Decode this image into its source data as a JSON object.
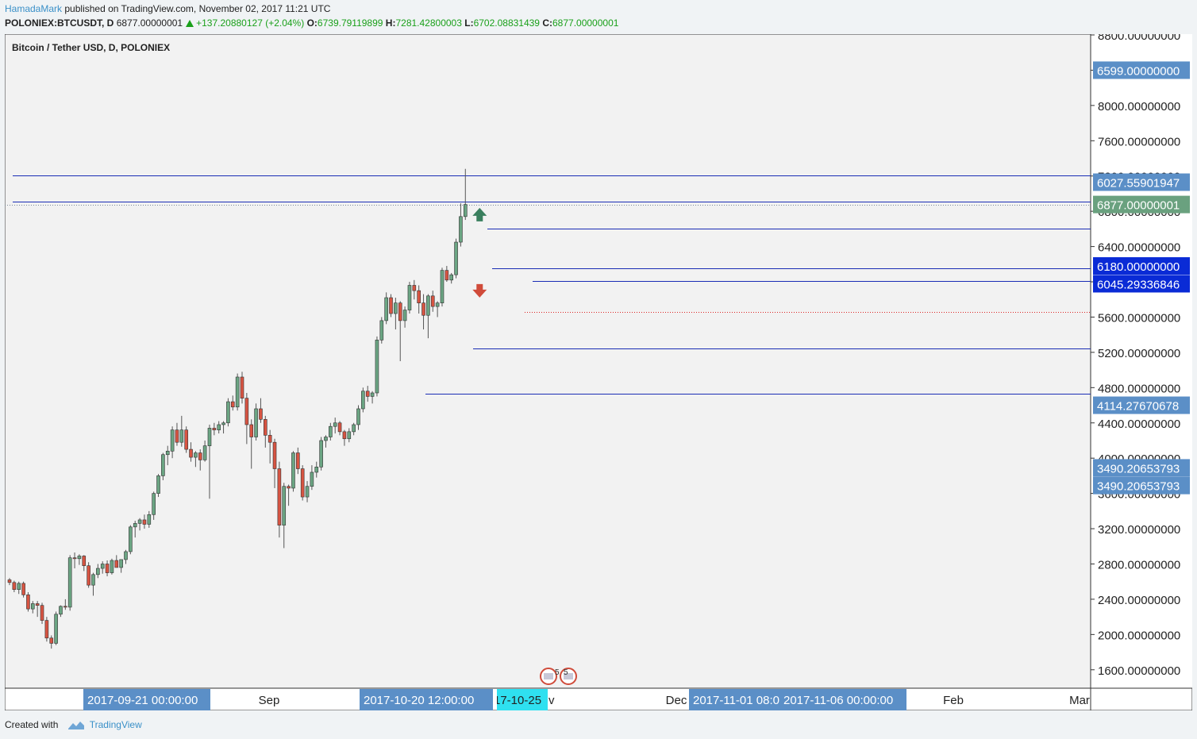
{
  "header": {
    "publisher": "HamadaMark",
    "published_text": "published on TradingView.com, November 02, 2017 11:21 UTC"
  },
  "ticker": {
    "symbol": "POLONIEX:BTCUSDT, D",
    "last": "6877.00000001",
    "change": "+137.20880127 (+2.04%)",
    "o_label": "O:",
    "o": "6739.79119899",
    "h_label": "H:",
    "h": "7281.42800003",
    "l_label": "L:",
    "l": "6702.08831439",
    "c_label": "C:",
    "c": "6877.00000001"
  },
  "footer": {
    "created_with": "Created with",
    "brand": "TradingView"
  },
  "chart_data": {
    "type": "candlestick",
    "title": "Bitcoin / Tether USD, D, POLONIEX",
    "ylim": [
      1400,
      8800
    ],
    "y_ticks": [
      1600,
      2000,
      2400,
      2800,
      3200,
      3600,
      4000,
      4400,
      4800,
      5200,
      5600,
      6000,
      6400,
      6800,
      7200,
      7600,
      8000,
      8400,
      8800
    ],
    "y_tick_decimals": 8,
    "x_ticks": [
      "Sep",
      "Dec",
      "Feb",
      "Mar"
    ],
    "x_highlight_labels": [
      {
        "text": "2017-09-21 00:00:00",
        "kind": "blue"
      },
      {
        "text": "2017-10-20 12:00:00",
        "kind": "blue"
      },
      {
        "text": "17-10-25",
        "kind": "cyan"
      },
      {
        "text": "2017-11-01 08:00:00",
        "kind": "blue"
      },
      {
        "text": "2017-11-06 00:00:00",
        "kind": "blue"
      }
    ],
    "price_labels": [
      {
        "text": "6599.00000000",
        "anchor_price": 8400,
        "color": "#5b8fc7"
      },
      {
        "text": "6027.55901947",
        "anchor_price": 7130,
        "color": "#5b8fc7"
      },
      {
        "text": "6877.00000001",
        "anchor_price": 6877,
        "color": "#6aa17f"
      },
      {
        "text": "6180.00000000",
        "anchor_price": 6180,
        "color": "#0a2bd6"
      },
      {
        "text": "6045.29336846",
        "anchor_price": 5978,
        "color": "#0a2bd6"
      },
      {
        "text": "4114.27670678",
        "anchor_price": 4600,
        "color": "#5b8fc7"
      },
      {
        "text": "3490.20653793",
        "anchor_price": 3890,
        "color": "#5b8fc7"
      },
      {
        "text": "3490.20653793",
        "anchor_price": 3690,
        "color": "#5b8fc7"
      }
    ],
    "horizontal_lines": [
      {
        "price": 7210,
        "style": "solid",
        "color": "#1a2db5"
      },
      {
        "price": 6910,
        "style": "solid",
        "color": "#1a2db5"
      },
      {
        "price": 6877,
        "style": "dotted",
        "color": "#7a8a98"
      },
      {
        "price": 6600,
        "style": "solid",
        "color": "#1a2db5"
      },
      {
        "price": 6150,
        "style": "solid",
        "color": "#1a2db5"
      },
      {
        "price": 6010,
        "style": "solid",
        "color": "#1a2db5"
      },
      {
        "price": 5660,
        "style": "dotted",
        "color": "#d22"
      },
      {
        "price": 5240,
        "style": "solid",
        "color": "#1a2db5"
      },
      {
        "price": 4730,
        "style": "solid",
        "color": "#1a2db5"
      }
    ],
    "series": [
      {
        "name": "BTCUSDT",
        "candles": [
          [
            2620,
            2640,
            2560,
            2590
          ],
          [
            2590,
            2610,
            2480,
            2510
          ],
          [
            2510,
            2600,
            2460,
            2580
          ],
          [
            2580,
            2600,
            2420,
            2450
          ],
          [
            2450,
            2480,
            2260,
            2290
          ],
          [
            2290,
            2380,
            2240,
            2350
          ],
          [
            2350,
            2380,
            2200,
            2330
          ],
          [
            2330,
            2360,
            2120,
            2160
          ],
          [
            2160,
            2200,
            1920,
            1960
          ],
          [
            1960,
            1990,
            1840,
            1900
          ],
          [
            1900,
            2260,
            1880,
            2230
          ],
          [
            2230,
            2330,
            2200,
            2320
          ],
          [
            2320,
            2400,
            2280,
            2310
          ],
          [
            2310,
            2900,
            2270,
            2870
          ],
          [
            2870,
            2930,
            2750,
            2860
          ],
          [
            2860,
            2910,
            2790,
            2890
          ],
          [
            2890,
            2900,
            2720,
            2780
          ],
          [
            2780,
            2820,
            2530,
            2560
          ],
          [
            2560,
            2700,
            2440,
            2680
          ],
          [
            2680,
            2800,
            2640,
            2750
          ],
          [
            2750,
            2830,
            2690,
            2800
          ],
          [
            2800,
            2840,
            2660,
            2700
          ],
          [
            2700,
            2860,
            2680,
            2840
          ],
          [
            2840,
            2900,
            2800,
            2760
          ],
          [
            2760,
            2820,
            2700,
            2850
          ],
          [
            2850,
            2960,
            2800,
            2940
          ],
          [
            2940,
            3240,
            2910,
            3220
          ],
          [
            3220,
            3290,
            3100,
            3260
          ],
          [
            3260,
            3320,
            3180,
            3300
          ],
          [
            3300,
            3360,
            3200,
            3250
          ],
          [
            3250,
            3400,
            3210,
            3360
          ],
          [
            3360,
            3620,
            3300,
            3600
          ],
          [
            3600,
            3820,
            3560,
            3800
          ],
          [
            3800,
            4060,
            3750,
            4040
          ],
          [
            4040,
            4140,
            3920,
            4080
          ],
          [
            4080,
            4360,
            4000,
            4320
          ],
          [
            4320,
            4400,
            4140,
            4180
          ],
          [
            4180,
            4480,
            4130,
            4320
          ],
          [
            4320,
            4360,
            4060,
            4100
          ],
          [
            4100,
            4180,
            3960,
            4010
          ],
          [
            4010,
            4080,
            3900,
            4060
          ],
          [
            4060,
            4100,
            3860,
            3980
          ],
          [
            3980,
            4200,
            3960,
            4140
          ],
          [
            4140,
            4380,
            3540,
            4340
          ],
          [
            4340,
            4400,
            4260,
            4320
          ],
          [
            4320,
            4420,
            4280,
            4380
          ],
          [
            4380,
            4420,
            4280,
            4400
          ],
          [
            4400,
            4680,
            4360,
            4640
          ],
          [
            4640,
            4710,
            4540,
            4580
          ],
          [
            4580,
            4960,
            4540,
            4920
          ],
          [
            4920,
            4980,
            4620,
            4680
          ],
          [
            4680,
            4740,
            4160,
            4380
          ],
          [
            4380,
            4440,
            3880,
            4240
          ],
          [
            4240,
            4620,
            4200,
            4560
          ],
          [
            4560,
            4680,
            4400,
            4440
          ],
          [
            4440,
            4480,
            4120,
            4260
          ],
          [
            4260,
            4320,
            3940,
            4180
          ],
          [
            4180,
            4220,
            3660,
            3880
          ],
          [
            3880,
            3960,
            3100,
            3240
          ],
          [
            3240,
            3720,
            2980,
            3680
          ],
          [
            3680,
            3700,
            3460,
            3660
          ],
          [
            3660,
            4080,
            3620,
            4060
          ],
          [
            4060,
            4120,
            3820,
            3880
          ],
          [
            3880,
            3920,
            3520,
            3560
          ],
          [
            3560,
            3740,
            3500,
            3680
          ],
          [
            3680,
            3920,
            3640,
            3840
          ],
          [
            3840,
            3960,
            3780,
            3900
          ],
          [
            3900,
            4240,
            3860,
            4200
          ],
          [
            4200,
            4260,
            4120,
            4240
          ],
          [
            4240,
            4400,
            4200,
            4360
          ],
          [
            4360,
            4460,
            4280,
            4400
          ],
          [
            4400,
            4420,
            4260,
            4300
          ],
          [
            4300,
            4320,
            4140,
            4220
          ],
          [
            4220,
            4340,
            4180,
            4300
          ],
          [
            4300,
            4400,
            4260,
            4380
          ],
          [
            4380,
            4600,
            4320,
            4560
          ],
          [
            4560,
            4800,
            4520,
            4760
          ],
          [
            4760,
            4820,
            4640,
            4700
          ],
          [
            4700,
            4760,
            4620,
            4740
          ],
          [
            4740,
            5380,
            4700,
            5340
          ],
          [
            5340,
            5600,
            5300,
            5560
          ],
          [
            5560,
            5880,
            5520,
            5820
          ],
          [
            5820,
            5860,
            5600,
            5640
          ],
          [
            5640,
            5820,
            5460,
            5760
          ],
          [
            5760,
            5780,
            5100,
            5560
          ],
          [
            5560,
            5720,
            5480,
            5680
          ],
          [
            5680,
            6000,
            5640,
            5960
          ],
          [
            5960,
            6020,
            5800,
            5900
          ],
          [
            5900,
            5960,
            5640,
            5760
          ],
          [
            5760,
            5860,
            5460,
            5620
          ],
          [
            5620,
            5860,
            5360,
            5840
          ],
          [
            5840,
            5900,
            5660,
            5720
          ],
          [
            5720,
            5780,
            5600,
            5760
          ],
          [
            5760,
            6160,
            5720,
            6130
          ],
          [
            6130,
            6180,
            6000,
            6020
          ],
          [
            6020,
            6100,
            5980,
            6080
          ],
          [
            6080,
            6490,
            6040,
            6450
          ],
          [
            6450,
            6890,
            6400,
            6740
          ],
          [
            6740,
            7281,
            6702,
            6877
          ]
        ]
      }
    ],
    "markers": [
      {
        "type": "arrow-up",
        "price": 6740,
        "color": "#3a7f5e"
      },
      {
        "type": "arrow-down",
        "price": 5920,
        "color": "#d04b3a"
      }
    ],
    "events": [
      "5",
      "5"
    ]
  }
}
